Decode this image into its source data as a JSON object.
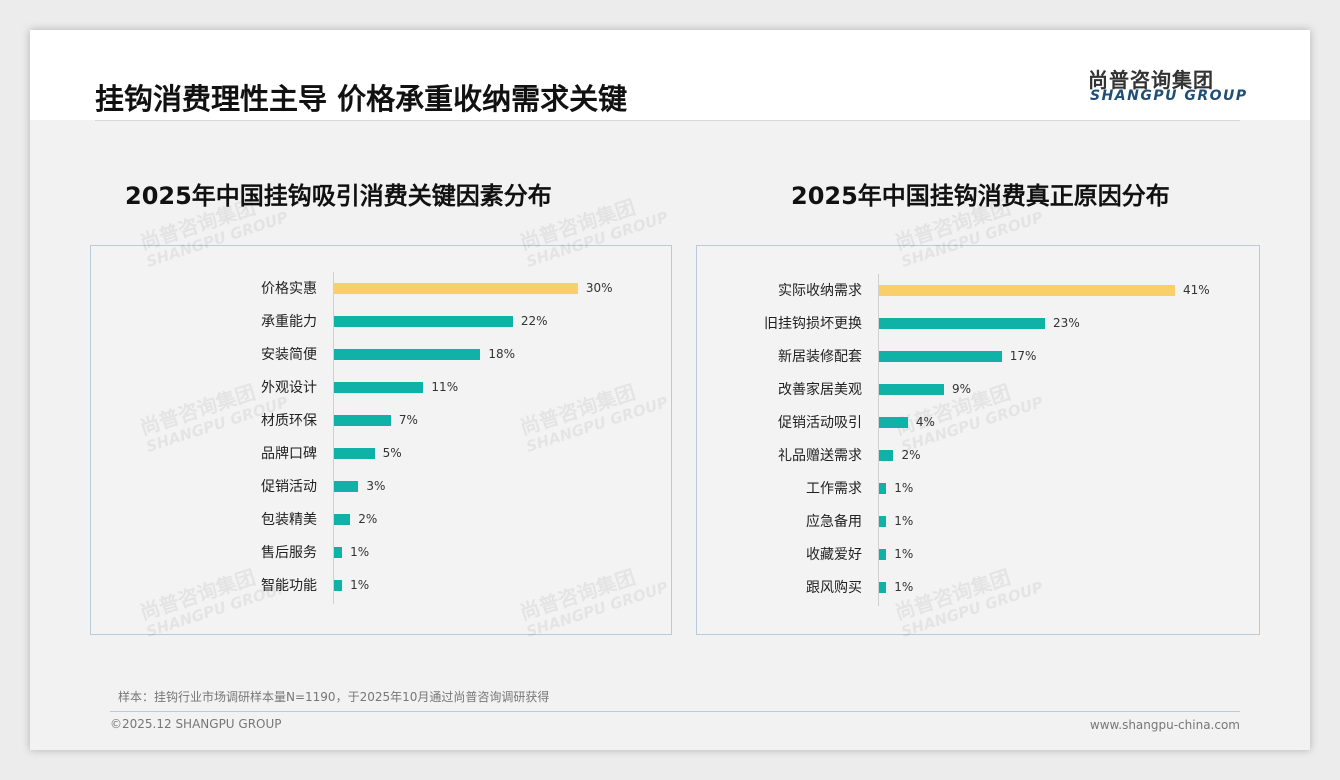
{
  "header": {
    "title": "挂钩消费理性主导 价格承重收纳需求关键",
    "logo_cn": "尚普咨询集团",
    "logo_en": "SHANGPU GROUP"
  },
  "colors": {
    "highlight": "#f9cf6a",
    "bar": "#10b2a8"
  },
  "chart_data": [
    {
      "type": "bar",
      "orientation": "horizontal",
      "title": "2025年中国挂钩吸引消费关键因素分布",
      "categories": [
        "价格实惠",
        "承重能力",
        "安装简便",
        "外观设计",
        "材质环保",
        "品牌口碑",
        "促销活动",
        "包装精美",
        "售后服务",
        "智能功能"
      ],
      "values": [
        30,
        22,
        18,
        11,
        7,
        5,
        3,
        2,
        1,
        1
      ],
      "labels": [
        "30%",
        "22%",
        "18%",
        "11%",
        "7%",
        "5%",
        "3%",
        "2%",
        "1%",
        "1%"
      ],
      "unit": "%"
    },
    {
      "type": "bar",
      "orientation": "horizontal",
      "title": "2025年中国挂钩消费真正原因分布",
      "categories": [
        "实际收纳需求",
        "旧挂钩损坏更换",
        "新居装修配套",
        "改善家居美观",
        "促销活动吸引",
        "礼品赠送需求",
        "工作需求",
        "应急备用",
        "收藏爱好",
        "跟风购买"
      ],
      "values": [
        41,
        23,
        17,
        9,
        4,
        2,
        1,
        1,
        1,
        1
      ],
      "labels": [
        "41%",
        "23%",
        "17%",
        "9%",
        "4%",
        "2%",
        "1%",
        "1%",
        "1%",
        "1%"
      ],
      "unit": "%"
    }
  ],
  "footer": {
    "note": "样本：挂钩行业市场调研样本量N=1190，于2025年10月通过尚普咨询调研获得",
    "copyright": "©2025.12 SHANGPU GROUP",
    "url": "www.shangpu-china.com"
  }
}
